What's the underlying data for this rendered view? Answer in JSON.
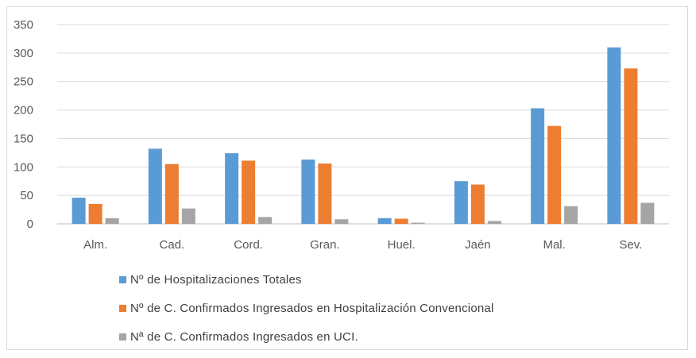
{
  "chart_data": {
    "type": "bar",
    "categories": [
      "Alm.",
      "Cad.",
      "Cord.",
      "Gran.",
      "Huel.",
      "Jaén",
      "Mal.",
      "Sev."
    ],
    "series": [
      {
        "name": "Nº de Hospitalizaciones Totales",
        "color": "#5b9bd5",
        "values": [
          46,
          132,
          124,
          113,
          10,
          75,
          203,
          310
        ]
      },
      {
        "name": "Nº de C. Confirmados Ingresados en Hospitalización Convencional",
        "color": "#ed7d31",
        "values": [
          35,
          105,
          111,
          106,
          9,
          69,
          172,
          273
        ]
      },
      {
        "name": "Nª de C. Confirmados Ingresados en UCI.",
        "color": "#a5a5a5",
        "values": [
          10,
          27,
          12,
          8,
          2,
          5,
          31,
          37
        ]
      }
    ],
    "ylim": [
      0,
      350
    ],
    "yticks": [
      0,
      50,
      100,
      150,
      200,
      250,
      300,
      350
    ],
    "grid": true,
    "legend_position": "bottom-left",
    "xlabel": "",
    "ylabel": "",
    "title": ""
  }
}
